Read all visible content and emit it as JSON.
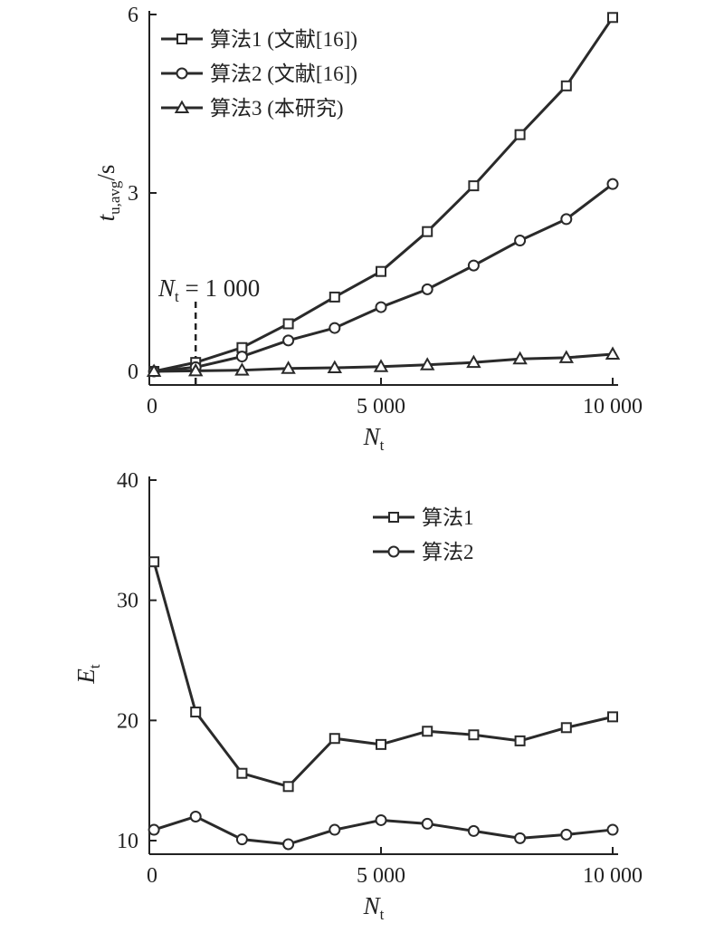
{
  "chart_data": [
    {
      "type": "line",
      "xlabel": "N",
      "xlabel_sub": "t",
      "ylabel": "t",
      "ylabel_sub": "u,avg",
      "ylabel_unit": "/s",
      "xlim": [
        0,
        10000
      ],
      "ylim": [
        0,
        6
      ],
      "xticks": [
        0,
        5000,
        10000
      ],
      "xtick_labels": [
        "0",
        "5 000",
        "10 000"
      ],
      "yticks": [
        0,
        3,
        6
      ],
      "ytick_labels": [
        "0",
        "3",
        "6"
      ],
      "grid": false,
      "legend_position": "top-left",
      "annotation": {
        "text_main": "N",
        "text_sub": "t",
        "text_rest": " = 1 000",
        "x": 1000
      },
      "x": [
        100,
        1000,
        2000,
        3000,
        4000,
        5000,
        6000,
        7000,
        8000,
        9000,
        10000
      ],
      "series": [
        {
          "name": "算法1 (文献[16])",
          "marker": "square",
          "values": [
            0.0,
            0.15,
            0.4,
            0.8,
            1.25,
            1.68,
            2.35,
            3.12,
            3.98,
            4.8,
            5.95
          ]
        },
        {
          "name": "算法2 (文献[16])",
          "marker": "circle",
          "values": [
            0.0,
            0.07,
            0.25,
            0.52,
            0.73,
            1.08,
            1.38,
            1.78,
            2.2,
            2.56,
            3.15
          ]
        },
        {
          "name": "算法3 (本研究)",
          "marker": "triangle",
          "values": [
            0.0,
            0.01,
            0.02,
            0.05,
            0.06,
            0.08,
            0.11,
            0.15,
            0.21,
            0.23,
            0.29
          ]
        }
      ]
    },
    {
      "type": "line",
      "xlabel": "N",
      "xlabel_sub": "t",
      "ylabel": "E",
      "ylabel_sub": "t",
      "xlim": [
        0,
        10000
      ],
      "ylim": [
        10,
        40
      ],
      "xticks": [
        0,
        5000,
        10000
      ],
      "xtick_labels": [
        "0",
        "5 000",
        "10 000"
      ],
      "yticks": [
        10,
        20,
        30,
        40
      ],
      "ytick_labels": [
        "10",
        "20",
        "30",
        "40"
      ],
      "grid": false,
      "legend_position": "top-right",
      "x": [
        100,
        1000,
        2000,
        3000,
        4000,
        5000,
        6000,
        7000,
        8000,
        9000,
        10000
      ],
      "series": [
        {
          "name": "算法1",
          "marker": "square",
          "values": [
            33.2,
            20.7,
            15.6,
            14.5,
            18.5,
            18.0,
            19.1,
            18.8,
            18.3,
            19.4,
            20.3
          ]
        },
        {
          "name": "算法2",
          "marker": "circle",
          "values": [
            10.9,
            12.0,
            10.1,
            9.7,
            10.9,
            11.7,
            11.4,
            10.8,
            10.2,
            10.5,
            10.9
          ]
        }
      ]
    }
  ]
}
